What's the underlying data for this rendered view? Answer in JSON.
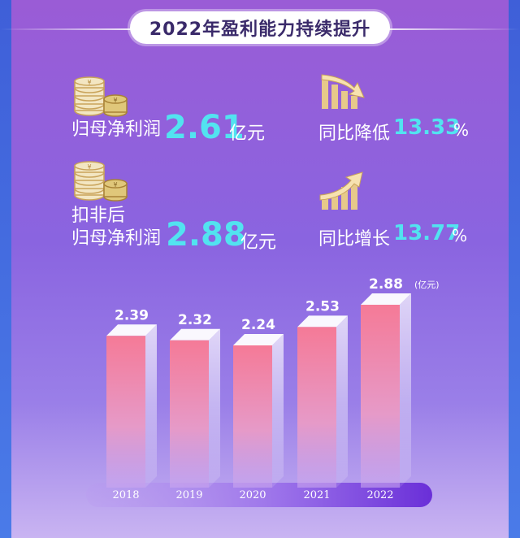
{
  "header": {
    "title": "2022年盈利能力持续提升"
  },
  "metrics": {
    "net_profit": {
      "label": "归母净利润",
      "value": "2.61",
      "unit": "亿元",
      "icon": "coins-icon"
    },
    "net_profit_deducted": {
      "label_line1": "扣非后",
      "label_line2": "归母净利润",
      "value": "2.88",
      "unit": "亿元",
      "icon": "coins-icon"
    },
    "yoy_decrease": {
      "label": "同比降低",
      "value": "13.33",
      "unit": "%",
      "icon": "bar-chart-down-icon"
    },
    "yoy_increase": {
      "label": "同比增长",
      "value": "13.77",
      "unit": "%",
      "icon": "bar-chart-up-icon"
    }
  },
  "colors": {
    "accent": "#52e3f0",
    "bar_top": "#f07a9a",
    "bar_bottom": "#b98af0",
    "axis_band": "#7a3ee0"
  },
  "chart_data": {
    "type": "bar",
    "categories": [
      "2018",
      "2019",
      "2020",
      "2021",
      "2022"
    ],
    "values": [
      2.39,
      2.32,
      2.24,
      2.53,
      2.88
    ],
    "value_labels": [
      "2.39",
      "2.32",
      "2.24",
      "2.53",
      "2.88"
    ],
    "unit_label": "(亿元)",
    "ylim": [
      0,
      3.0
    ],
    "grid": false,
    "legend": "none"
  }
}
